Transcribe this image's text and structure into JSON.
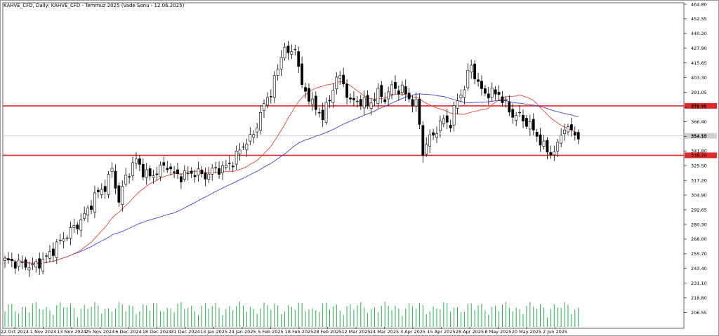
{
  "window": {
    "title": "KAHVE_CFD, Daily:  KAHVE_CFD - Temmuz 2025 (Vade Sonu - 12.06.2025)"
  },
  "colors": {
    "background": "#ffffff",
    "candle_up": "#ffffff",
    "candle_down": "#000000",
    "ma_fast": "#e8463c",
    "ma_slow": "#3d44e0",
    "level": "#e02b2b",
    "volume": "#22b14c",
    "current_price_line": "#c8c8c8"
  },
  "chart_data": {
    "type": "candlestick",
    "symbol": "KAHVE_CFD",
    "timeframe": "Daily",
    "ylim": [
      194.5,
      464.8
    ],
    "y_ticks": [
      "464.80",
      "452.55",
      "440.20",
      "427.90",
      "415.65",
      "403.30",
      "391.05",
      "378.75",
      "366.40",
      "354.10",
      "341.80",
      "329.50",
      "317.20",
      "304.90",
      "292.65",
      "280.30",
      "268.00",
      "255.70",
      "243.40",
      "231.10",
      "218.80",
      "206.55"
    ],
    "x_labels": [
      "22 Oct 2024",
      "1 Nov 2024",
      "13 Nov 2024",
      "25 Nov 2024",
      "6 Dec 2024",
      "18 Dec 2024",
      "31 Dec 2024",
      "13 Jan 2025",
      "24 Jan 2025",
      "5 Feb 2025",
      "18 Feb 2025",
      "28 Feb 2025",
      "12 Mar 2025",
      "24 Mar 2025",
      "3 Apr 2025",
      "15 Apr 2025",
      "28 Apr 2025",
      "8 May 2025",
      "20 May 2025",
      "2 Jun 2025"
    ],
    "levels": [
      {
        "value": 379.65,
        "label": "379.65"
      },
      {
        "value": 338.2,
        "label": "338.20"
      }
    ],
    "current_price": {
      "value": 354.55,
      "label": "354.55"
    },
    "anchor_prices": [
      [
        0,
        250
      ],
      [
        5,
        247
      ],
      [
        8,
        245
      ],
      [
        11,
        250
      ],
      [
        13,
        256
      ],
      [
        16,
        266
      ],
      [
        19,
        275
      ],
      [
        21,
        280
      ],
      [
        24,
        292
      ],
      [
        26,
        304
      ],
      [
        29,
        312
      ],
      [
        31,
        326
      ],
      [
        33,
        300
      ],
      [
        35,
        320
      ],
      [
        37,
        330
      ],
      [
        38,
        334
      ],
      [
        40,
        325
      ],
      [
        42,
        320
      ],
      [
        45,
        327
      ],
      [
        47,
        330
      ],
      [
        49,
        322
      ],
      [
        51,
        321
      ],
      [
        55,
        324
      ],
      [
        58,
        321
      ],
      [
        61,
        327
      ],
      [
        63,
        327
      ],
      [
        66,
        333
      ],
      [
        69,
        347
      ],
      [
        72,
        355
      ],
      [
        73,
        365
      ],
      [
        75,
        380
      ],
      [
        77,
        392
      ],
      [
        79,
        410
      ],
      [
        81,
        432
      ],
      [
        82,
        420
      ],
      [
        84,
        430
      ],
      [
        86,
        395
      ],
      [
        88,
        388
      ],
      [
        90,
        376
      ],
      [
        92,
        372
      ],
      [
        94,
        384
      ],
      [
        96,
        405
      ],
      [
        98,
        398
      ],
      [
        100,
        383
      ],
      [
        103,
        384
      ],
      [
        105,
        380
      ],
      [
        108,
        390
      ],
      [
        110,
        386
      ],
      [
        112,
        395
      ],
      [
        115,
        393
      ],
      [
        117,
        386
      ],
      [
        119,
        380
      ],
      [
        120,
        365
      ],
      [
        121,
        340
      ],
      [
        122,
        348
      ],
      [
        124,
        356
      ],
      [
        127,
        368
      ],
      [
        129,
        365
      ],
      [
        131,
        385
      ],
      [
        133,
        395
      ],
      [
        135,
        415
      ],
      [
        136,
        405
      ],
      [
        138,
        392
      ],
      [
        140,
        390
      ],
      [
        143,
        390
      ],
      [
        145,
        380
      ],
      [
        147,
        372
      ],
      [
        149,
        371
      ],
      [
        152,
        363
      ],
      [
        154,
        355
      ],
      [
        156,
        345
      ],
      [
        158,
        340
      ],
      [
        160,
        345
      ],
      [
        161,
        357
      ],
      [
        162,
        362
      ],
      [
        164,
        358
      ],
      [
        166,
        355
      ]
    ],
    "ma_fast_period_label": "",
    "ma_slow_period_label": ""
  }
}
